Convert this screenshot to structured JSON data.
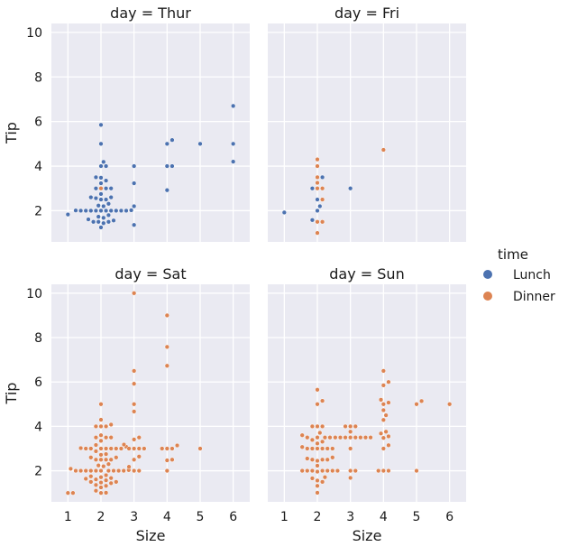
{
  "chart_data": {
    "type": "scatter",
    "kind": "swarm",
    "facet": "day",
    "xlabel": "Size",
    "ylabel": "Tip",
    "x_categories": [
      1,
      2,
      3,
      4,
      5,
      6
    ],
    "ylim": [
      0.6,
      10.4
    ],
    "yticks": [
      2,
      4,
      6,
      8,
      10
    ],
    "grid": true,
    "legend": {
      "title": "time",
      "position": "right",
      "entries": [
        {
          "name": "Lunch",
          "color": "#4c72b0"
        },
        {
          "name": "Dinner",
          "color": "#dd8452"
        }
      ]
    },
    "panels": [
      {
        "title": "day = Thur",
        "points": {
          "1": [
            [
              1.83,
              "Lunch"
            ]
          ],
          "2": [
            [
              1.25,
              "Lunch"
            ],
            [
              1.44,
              "Lunch"
            ],
            [
              1.5,
              "Lunch"
            ],
            [
              1.5,
              "Lunch"
            ],
            [
              1.5,
              "Lunch"
            ],
            [
              1.56,
              "Lunch"
            ],
            [
              1.61,
              "Lunch"
            ],
            [
              1.68,
              "Lunch"
            ],
            [
              1.73,
              "Lunch"
            ],
            [
              1.8,
              "Lunch"
            ],
            [
              2.0,
              "Lunch"
            ],
            [
              2.0,
              "Lunch"
            ],
            [
              2.0,
              "Lunch"
            ],
            [
              2.0,
              "Lunch"
            ],
            [
              2.0,
              "Lunch"
            ],
            [
              2.0,
              "Lunch"
            ],
            [
              2.0,
              "Lunch"
            ],
            [
              2.0,
              "Lunch"
            ],
            [
              2.0,
              "Lunch"
            ],
            [
              2.0,
              "Lunch"
            ],
            [
              2.01,
              "Lunch"
            ],
            [
              2.02,
              "Lunch"
            ],
            [
              2.2,
              "Lunch"
            ],
            [
              2.23,
              "Lunch"
            ],
            [
              2.31,
              "Lunch"
            ],
            [
              2.5,
              "Lunch"
            ],
            [
              2.5,
              "Lunch"
            ],
            [
              2.56,
              "Lunch"
            ],
            [
              2.6,
              "Lunch"
            ],
            [
              2.6,
              "Lunch"
            ],
            [
              2.75,
              "Lunch"
            ],
            [
              3.0,
              "Dinner"
            ],
            [
              3.0,
              "Lunch"
            ],
            [
              3.0,
              "Lunch"
            ],
            [
              3.0,
              "Lunch"
            ],
            [
              3.23,
              "Lunch"
            ],
            [
              3.35,
              "Lunch"
            ],
            [
              3.48,
              "Lunch"
            ],
            [
              3.5,
              "Lunch"
            ],
            [
              4.0,
              "Lunch"
            ],
            [
              4.0,
              "Lunch"
            ],
            [
              4.19,
              "Lunch"
            ],
            [
              5.0,
              "Lunch"
            ],
            [
              5.85,
              "Lunch"
            ]
          ],
          "3": [
            [
              1.36,
              "Lunch"
            ],
            [
              2.2,
              "Lunch"
            ],
            [
              3.23,
              "Lunch"
            ],
            [
              4.0,
              "Lunch"
            ]
          ],
          "4": [
            [
              2.92,
              "Lunch"
            ],
            [
              4.0,
              "Lunch"
            ],
            [
              4.0,
              "Lunch"
            ],
            [
              5.0,
              "Lunch"
            ],
            [
              5.17,
              "Lunch"
            ]
          ],
          "5": [
            [
              5.0,
              "Lunch"
            ]
          ],
          "6": [
            [
              4.2,
              "Lunch"
            ],
            [
              5.0,
              "Lunch"
            ],
            [
              6.7,
              "Lunch"
            ]
          ]
        }
      },
      {
        "title": "day = Fri",
        "points": {
          "1": [
            [
              1.92,
              "Lunch"
            ]
          ],
          "2": [
            [
              1.0,
              "Dinner"
            ],
            [
              1.5,
              "Dinner"
            ],
            [
              1.5,
              "Dinner"
            ],
            [
              1.58,
              "Lunch"
            ],
            [
              2.0,
              "Lunch"
            ],
            [
              2.2,
              "Lunch"
            ],
            [
              2.5,
              "Lunch"
            ],
            [
              2.5,
              "Dinner"
            ],
            [
              3.0,
              "Dinner"
            ],
            [
              3.0,
              "Dinner"
            ],
            [
              3.0,
              "Lunch"
            ],
            [
              3.25,
              "Dinner"
            ],
            [
              3.5,
              "Dinner"
            ],
            [
              3.5,
              "Lunch"
            ],
            [
              4.0,
              "Dinner"
            ],
            [
              4.3,
              "Dinner"
            ]
          ],
          "3": [
            [
              3.0,
              "Lunch"
            ]
          ],
          "4": [
            [
              4.73,
              "Dinner"
            ]
          ]
        }
      },
      {
        "title": "day = Sat",
        "points": {
          "1": [
            [
              1.0,
              "Dinner"
            ],
            [
              1.0,
              "Dinner"
            ]
          ],
          "2": [
            [
              1.0,
              "Dinner"
            ],
            [
              1.01,
              "Dinner"
            ],
            [
              1.1,
              "Dinner"
            ],
            [
              1.25,
              "Dinner"
            ],
            [
              1.32,
              "Dinner"
            ],
            [
              1.36,
              "Dinner"
            ],
            [
              1.44,
              "Dinner"
            ],
            [
              1.47,
              "Dinner"
            ],
            [
              1.5,
              "Dinner"
            ],
            [
              1.5,
              "Dinner"
            ],
            [
              1.57,
              "Dinner"
            ],
            [
              1.61,
              "Dinner"
            ],
            [
              1.64,
              "Dinner"
            ],
            [
              1.67,
              "Dinner"
            ],
            [
              1.71,
              "Dinner"
            ],
            [
              1.75,
              "Dinner"
            ],
            [
              1.8,
              "Dinner"
            ],
            [
              2.0,
              "Dinner"
            ],
            [
              2.0,
              "Dinner"
            ],
            [
              2.0,
              "Dinner"
            ],
            [
              2.0,
              "Dinner"
            ],
            [
              2.0,
              "Dinner"
            ],
            [
              2.0,
              "Dinner"
            ],
            [
              2.0,
              "Dinner"
            ],
            [
              2.0,
              "Dinner"
            ],
            [
              2.0,
              "Dinner"
            ],
            [
              2.0,
              "Dinner"
            ],
            [
              2.03,
              "Dinner"
            ],
            [
              2.09,
              "Dinner"
            ],
            [
              2.2,
              "Dinner"
            ],
            [
              2.24,
              "Dinner"
            ],
            [
              2.3,
              "Dinner"
            ],
            [
              2.5,
              "Dinner"
            ],
            [
              2.5,
              "Dinner"
            ],
            [
              2.5,
              "Dinner"
            ],
            [
              2.5,
              "Dinner"
            ],
            [
              2.6,
              "Dinner"
            ],
            [
              2.6,
              "Dinner"
            ],
            [
              2.72,
              "Dinner"
            ],
            [
              2.75,
              "Dinner"
            ],
            [
              2.88,
              "Dinner"
            ],
            [
              3.0,
              "Dinner"
            ],
            [
              3.0,
              "Dinner"
            ],
            [
              3.0,
              "Dinner"
            ],
            [
              3.0,
              "Dinner"
            ],
            [
              3.0,
              "Dinner"
            ],
            [
              3.0,
              "Dinner"
            ],
            [
              3.0,
              "Dinner"
            ],
            [
              3.02,
              "Dinner"
            ],
            [
              3.08,
              "Dinner"
            ],
            [
              3.16,
              "Dinner"
            ],
            [
              3.35,
              "Dinner"
            ],
            [
              3.5,
              "Dinner"
            ],
            [
              3.5,
              "Dinner"
            ],
            [
              3.5,
              "Dinner"
            ],
            [
              3.6,
              "Dinner"
            ],
            [
              4.0,
              "Dinner"
            ],
            [
              4.0,
              "Dinner"
            ],
            [
              4.0,
              "Dinner"
            ],
            [
              4.08,
              "Dinner"
            ],
            [
              4.3,
              "Dinner"
            ],
            [
              5.0,
              "Dinner"
            ]
          ],
          "3": [
            [
              2.0,
              "Dinner"
            ],
            [
              2.0,
              "Dinner"
            ],
            [
              2.18,
              "Dinner"
            ],
            [
              2.5,
              "Dinner"
            ],
            [
              2.64,
              "Dinner"
            ],
            [
              3.0,
              "Dinner"
            ],
            [
              3.0,
              "Dinner"
            ],
            [
              3.0,
              "Dinner"
            ],
            [
              3.0,
              "Dinner"
            ],
            [
              3.18,
              "Dinner"
            ],
            [
              3.41,
              "Dinner"
            ],
            [
              3.5,
              "Dinner"
            ],
            [
              4.67,
              "Dinner"
            ],
            [
              5.0,
              "Dinner"
            ],
            [
              5.92,
              "Dinner"
            ],
            [
              6.5,
              "Dinner"
            ],
            [
              10.0,
              "Dinner"
            ]
          ],
          "4": [
            [
              2.0,
              "Dinner"
            ],
            [
              2.47,
              "Dinner"
            ],
            [
              2.5,
              "Dinner"
            ],
            [
              3.0,
              "Dinner"
            ],
            [
              3.0,
              "Dinner"
            ],
            [
              3.0,
              "Dinner"
            ],
            [
              3.14,
              "Dinner"
            ],
            [
              6.73,
              "Dinner"
            ],
            [
              7.58,
              "Dinner"
            ],
            [
              9.0,
              "Dinner"
            ]
          ],
          "5": [
            [
              3.0,
              "Dinner"
            ]
          ]
        }
      },
      {
        "title": "day = Sun",
        "points": {
          "2": [
            [
              1.01,
              "Dinner"
            ],
            [
              1.32,
              "Dinner"
            ],
            [
              1.5,
              "Dinner"
            ],
            [
              1.56,
              "Dinner"
            ],
            [
              1.66,
              "Dinner"
            ],
            [
              1.71,
              "Dinner"
            ],
            [
              1.96,
              "Dinner"
            ],
            [
              2.0,
              "Dinner"
            ],
            [
              2.0,
              "Dinner"
            ],
            [
              2.0,
              "Dinner"
            ],
            [
              2.0,
              "Dinner"
            ],
            [
              2.0,
              "Dinner"
            ],
            [
              2.0,
              "Dinner"
            ],
            [
              2.0,
              "Dinner"
            ],
            [
              2.23,
              "Dinner"
            ],
            [
              2.45,
              "Dinner"
            ],
            [
              2.5,
              "Dinner"
            ],
            [
              2.5,
              "Dinner"
            ],
            [
              2.5,
              "Dinner"
            ],
            [
              2.55,
              "Dinner"
            ],
            [
              2.6,
              "Dinner"
            ],
            [
              3.0,
              "Dinner"
            ],
            [
              3.0,
              "Dinner"
            ],
            [
              3.0,
              "Dinner"
            ],
            [
              3.0,
              "Dinner"
            ],
            [
              3.0,
              "Dinner"
            ],
            [
              3.0,
              "Dinner"
            ],
            [
              3.07,
              "Dinner"
            ],
            [
              3.23,
              "Dinner"
            ],
            [
              3.31,
              "Dinner"
            ],
            [
              3.39,
              "Dinner"
            ],
            [
              3.5,
              "Dinner"
            ],
            [
              3.5,
              "Dinner"
            ],
            [
              3.5,
              "Dinner"
            ],
            [
              3.5,
              "Dinner"
            ],
            [
              3.6,
              "Dinner"
            ],
            [
              3.71,
              "Dinner"
            ],
            [
              4.0,
              "Dinner"
            ],
            [
              4.0,
              "Dinner"
            ],
            [
              4.0,
              "Dinner"
            ],
            [
              5.0,
              "Dinner"
            ],
            [
              5.15,
              "Dinner"
            ],
            [
              5.65,
              "Dinner"
            ]
          ],
          "3": [
            [
              1.68,
              "Dinner"
            ],
            [
              2.0,
              "Dinner"
            ],
            [
              2.0,
              "Dinner"
            ],
            [
              3.0,
              "Dinner"
            ],
            [
              3.5,
              "Dinner"
            ],
            [
              3.5,
              "Dinner"
            ],
            [
              3.5,
              "Dinner"
            ],
            [
              3.5,
              "Dinner"
            ],
            [
              3.5,
              "Dinner"
            ],
            [
              3.5,
              "Dinner"
            ],
            [
              3.5,
              "Dinner"
            ],
            [
              3.5,
              "Dinner"
            ],
            [
              3.76,
              "Dinner"
            ],
            [
              4.0,
              "Dinner"
            ],
            [
              4.0,
              "Dinner"
            ],
            [
              4.0,
              "Dinner"
            ]
          ],
          "4": [
            [
              2.0,
              "Dinner"
            ],
            [
              2.0,
              "Dinner"
            ],
            [
              2.0,
              "Dinner"
            ],
            [
              3.0,
              "Dinner"
            ],
            [
              3.15,
              "Dinner"
            ],
            [
              3.48,
              "Dinner"
            ],
            [
              3.55,
              "Dinner"
            ],
            [
              3.68,
              "Dinner"
            ],
            [
              3.76,
              "Dinner"
            ],
            [
              4.29,
              "Dinner"
            ],
            [
              4.5,
              "Dinner"
            ],
            [
              4.73,
              "Dinner"
            ],
            [
              5.0,
              "Dinner"
            ],
            [
              5.07,
              "Dinner"
            ],
            [
              5.2,
              "Dinner"
            ],
            [
              5.85,
              "Dinner"
            ],
            [
              6.0,
              "Dinner"
            ],
            [
              6.5,
              "Dinner"
            ]
          ],
          "5": [
            [
              2.0,
              "Dinner"
            ],
            [
              5.0,
              "Dinner"
            ],
            [
              5.14,
              "Dinner"
            ]
          ],
          "6": [
            [
              5.0,
              "Dinner"
            ]
          ]
        }
      }
    ]
  }
}
